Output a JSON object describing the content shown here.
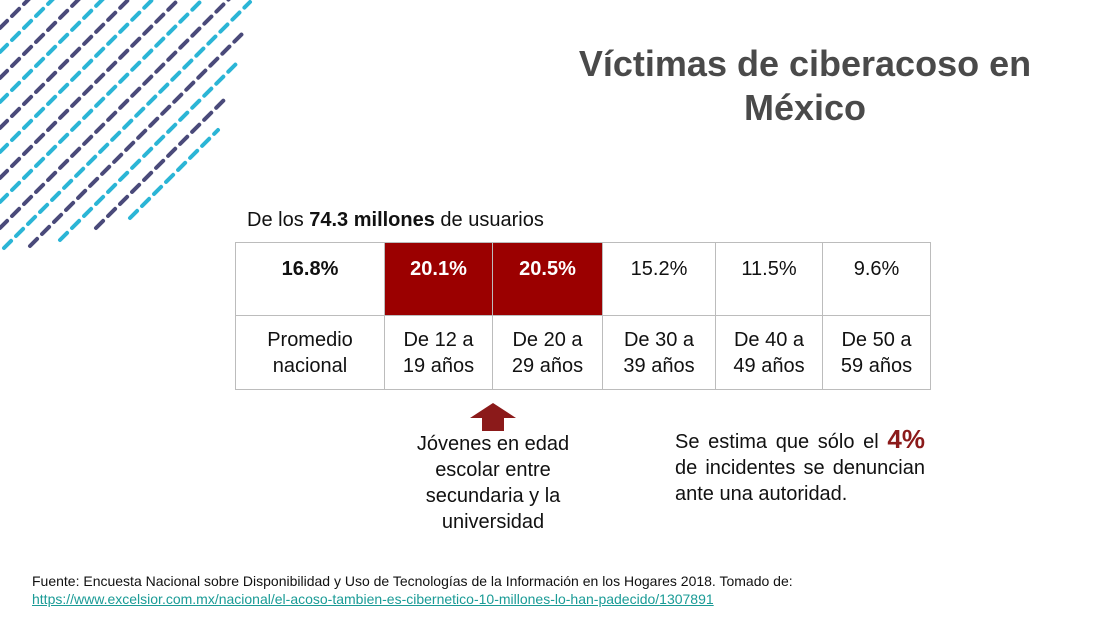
{
  "title": "Víctimas de ciberacoso en México",
  "subtitle": {
    "prefix": "De los ",
    "highlight": "74.3 millones",
    "suffix": " de usuarios"
  },
  "table": {
    "columns": [
      {
        "pct": "16.8%",
        "label_line1": "Promedio",
        "label_line2": "nacional",
        "style": "bold"
      },
      {
        "pct": "20.1%",
        "label_line1": "De 12 a",
        "label_line2": "19 años",
        "style": "highlight"
      },
      {
        "pct": "20.5%",
        "label_line1": "De 20 a",
        "label_line2": "29 años",
        "style": "highlight"
      },
      {
        "pct": "15.2%",
        "label_line1": "De 30 a",
        "label_line2": "39 años",
        "style": "normal"
      },
      {
        "pct": "11.5%",
        "label_line1": "De 40 a",
        "label_line2": "49 años",
        "style": "normal"
      },
      {
        "pct": "9.6%",
        "label_line1": "De 50 a",
        "label_line2": "59 años",
        "style": "normal"
      }
    ]
  },
  "callout_youth": {
    "line1": "Jóvenes en edad",
    "line2": "escolar entre",
    "line3": "secundaria y la",
    "line4": "universidad"
  },
  "callout_estimate": {
    "prefix": "Se estima que sólo el ",
    "highlight": "4%",
    "suffix": " de incidentes se denuncian ante una autoridad."
  },
  "source": {
    "text": "Fuente: Encuesta Nacional sobre Disponibilidad y Uso de Tecnologías de la Información en los Hogares 2018. Tomado de:",
    "link": "https://www.excelsior.com.mx/nacional/el-acoso-tambien-es-cibernetico-10-millones-lo-han-padecido/1307891"
  },
  "colors": {
    "highlight_cell": "#9b0000",
    "arrow": "#8b1a1a",
    "title": "#4a4a4a",
    "deco_dark": "#4a4a7a",
    "deco_light": "#2bb5d6",
    "link": "#1a9b96"
  }
}
